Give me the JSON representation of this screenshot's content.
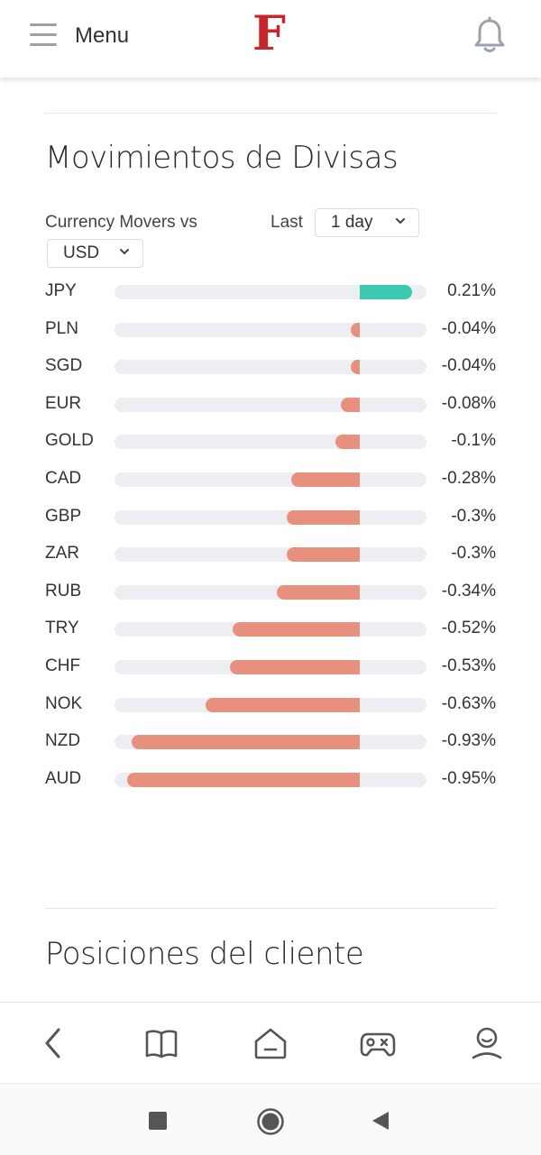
{
  "header": {
    "menu_label": "Menu",
    "logo_text": "F"
  },
  "section1": {
    "title": "Movimientos de Divisas",
    "filter_label": "Currency Movers vs",
    "base_currency": "USD",
    "period_label": "Last",
    "period_value": "1 day"
  },
  "colors": {
    "positive": "#3cc9b0",
    "negative": "#e8907e",
    "track": "#eceef1"
  },
  "chart_data": {
    "type": "bar",
    "categories": [
      "JPY",
      "PLN",
      "SGD",
      "EUR",
      "GOLD",
      "CAD",
      "GBP",
      "ZAR",
      "RUB",
      "TRY",
      "CHF",
      "NOK",
      "NZD",
      "AUD"
    ],
    "values": [
      0.21,
      -0.04,
      -0.04,
      -0.08,
      -0.1,
      -0.28,
      -0.3,
      -0.3,
      -0.34,
      -0.52,
      -0.53,
      -0.63,
      -0.93,
      -0.95
    ],
    "labels": [
      "0.21%",
      "-0.04%",
      "-0.04%",
      "-0.08%",
      "-0.1%",
      "-0.28%",
      "-0.3%",
      "-0.3%",
      "-0.34%",
      "-0.52%",
      "-0.53%",
      "-0.63%",
      "-0.93%",
      "-0.95%"
    ],
    "xlim": [
      -1.0,
      0.27
    ]
  },
  "section2": {
    "title": "Posiciones del cliente"
  },
  "icons": {
    "hamburger": "hamburger-menu-icon",
    "bell": "bell-icon",
    "back": "chevron-left-icon",
    "book": "book-icon",
    "home": "home-icon",
    "game": "gamepad-icon",
    "profile": "user-icon"
  }
}
